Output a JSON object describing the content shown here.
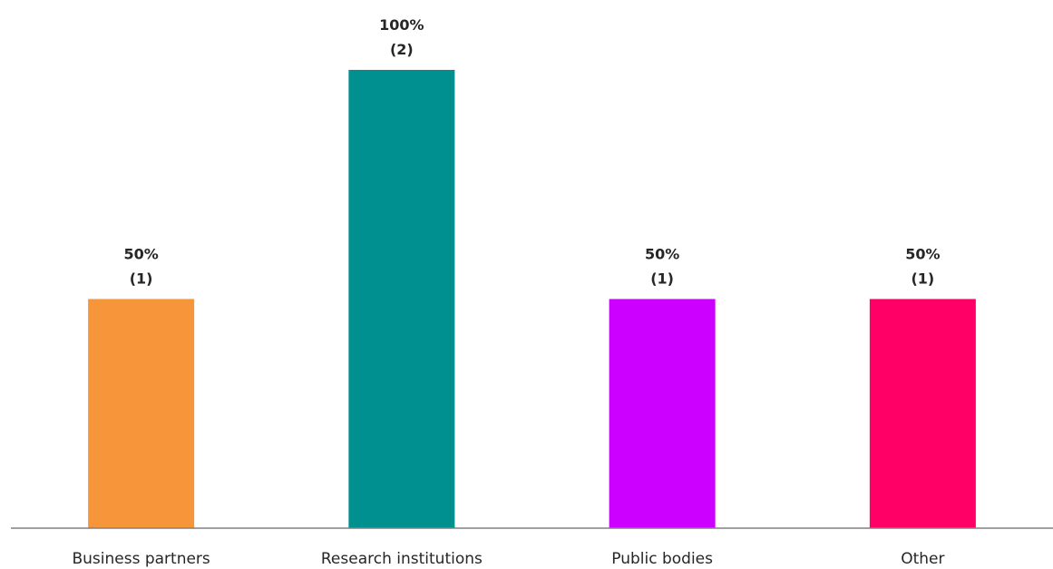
{
  "chart_data": {
    "type": "bar",
    "title": "",
    "xlabel": "",
    "ylabel": "",
    "ylim": [
      0,
      100
    ],
    "grid": false,
    "legend": "none",
    "categories": [
      "Business partners",
      "Research institutions",
      "Public bodies",
      "Other"
    ],
    "values": [
      50,
      100,
      50,
      50
    ],
    "data_labels": [
      {
        "percent": "50%",
        "count": "(1)"
      },
      {
        "percent": "100%",
        "count": "(2)"
      },
      {
        "percent": "50%",
        "count": "(1)"
      },
      {
        "percent": "50%",
        "count": "(1)"
      }
    ],
    "colors": [
      "#F7953A",
      "#009090",
      "#CC00FF",
      "#FF0066"
    ],
    "axis_color": "#808080"
  }
}
